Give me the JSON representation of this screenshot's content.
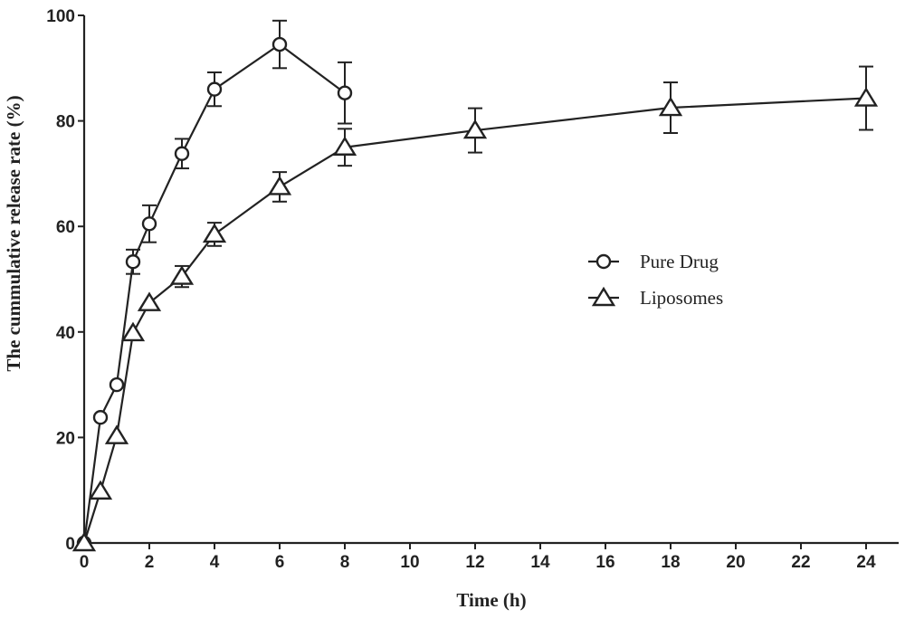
{
  "chart_data": {
    "type": "line",
    "title": "",
    "xlabel": "Time (h)",
    "ylabel": "The cummulative release rate (%)",
    "xlim": [
      0,
      25
    ],
    "ylim": [
      0,
      100
    ],
    "xticks": [
      0,
      2,
      4,
      6,
      8,
      10,
      12,
      14,
      16,
      18,
      20,
      22,
      24
    ],
    "yticks": [
      0,
      20,
      40,
      60,
      80,
      100
    ],
    "grid": false,
    "legend_position": "right-middle",
    "series": [
      {
        "name": "Pure Drug",
        "marker": "circle",
        "x": [
          0,
          0.5,
          1,
          1.5,
          2,
          3,
          4,
          6,
          8
        ],
        "y": [
          0,
          23.8,
          30,
          53.3,
          60.5,
          73.8,
          86,
          94.5,
          85.3
        ],
        "error": [
          0,
          0,
          0,
          2.3,
          3.5,
          2.8,
          3.2,
          4.5,
          5.8
        ]
      },
      {
        "name": "Liposomes",
        "marker": "triangle",
        "x": [
          0,
          0.5,
          1,
          1.5,
          2,
          3,
          4,
          6,
          8,
          12,
          18,
          24
        ],
        "y": [
          0,
          9.8,
          20.3,
          39.8,
          45.5,
          50.5,
          58.5,
          67.5,
          75,
          78.2,
          82.5,
          84.3
        ],
        "error": [
          0,
          0,
          0,
          0,
          0,
          2,
          2.2,
          2.8,
          3.5,
          4.2,
          4.8,
          6
        ]
      }
    ]
  }
}
